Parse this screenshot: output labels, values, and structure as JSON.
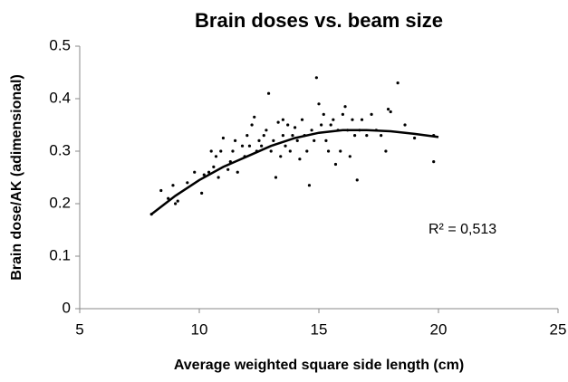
{
  "chart_data": {
    "type": "scatter",
    "title": "Brain doses vs. beam size",
    "x_label": "Average weighted square side length (cm)",
    "y_label": "Brain dose/AK (adimensional)",
    "annotation": "R² = 0,513",
    "x": [
      8.0,
      8.4,
      8.7,
      8.9,
      9.1,
      9.0,
      9.5,
      9.8,
      10.1,
      10.2,
      10.4,
      10.5,
      10.6,
      10.7,
      10.8,
      10.9,
      11.0,
      11.2,
      11.3,
      11.4,
      11.5,
      11.6,
      11.8,
      11.9,
      12.0,
      12.1,
      12.2,
      12.3,
      12.4,
      12.5,
      12.6,
      12.7,
      12.8,
      12.9,
      13.0,
      13.1,
      13.2,
      13.3,
      13.4,
      13.5,
      13.5,
      13.6,
      13.7,
      13.8,
      13.9,
      14.0,
      14.1,
      14.2,
      14.3,
      14.4,
      14.5,
      14.6,
      14.7,
      14.8,
      14.9,
      15.0,
      15.1,
      15.2,
      15.3,
      15.4,
      15.5,
      15.6,
      15.7,
      15.8,
      15.9,
      16.0,
      16.1,
      16.2,
      16.3,
      16.4,
      16.5,
      16.6,
      16.7,
      16.8,
      17.0,
      17.2,
      17.4,
      17.6,
      17.8,
      17.9,
      18.0,
      18.3,
      18.6,
      19.0,
      19.8,
      19.8
    ],
    "values": [
      0.18,
      0.225,
      0.21,
      0.235,
      0.205,
      0.2,
      0.24,
      0.26,
      0.22,
      0.255,
      0.26,
      0.3,
      0.27,
      0.29,
      0.25,
      0.3,
      0.325,
      0.265,
      0.28,
      0.3,
      0.32,
      0.26,
      0.31,
      0.29,
      0.33,
      0.31,
      0.35,
      0.365,
      0.3,
      0.32,
      0.31,
      0.33,
      0.34,
      0.41,
      0.3,
      0.32,
      0.25,
      0.355,
      0.29,
      0.33,
      0.36,
      0.31,
      0.35,
      0.3,
      0.33,
      0.345,
      0.32,
      0.285,
      0.36,
      0.33,
      0.3,
      0.235,
      0.34,
      0.32,
      0.44,
      0.39,
      0.35,
      0.37,
      0.32,
      0.3,
      0.35,
      0.36,
      0.275,
      0.34,
      0.3,
      0.37,
      0.385,
      0.34,
      0.29,
      0.36,
      0.33,
      0.245,
      0.34,
      0.36,
      0.33,
      0.37,
      0.34,
      0.33,
      0.3,
      0.38,
      0.375,
      0.43,
      0.35,
      0.325,
      0.33,
      0.28
    ],
    "color": "#000000",
    "trendline": {
      "x": [
        8,
        9,
        10,
        11,
        12,
        13,
        14,
        15,
        16,
        17,
        18,
        19,
        20
      ],
      "values": [
        0.18,
        0.215,
        0.245,
        0.27,
        0.29,
        0.31,
        0.325,
        0.335,
        0.34,
        0.34,
        0.338,
        0.333,
        0.327
      ],
      "color": "#000000"
    },
    "xlim": [
      5,
      25
    ],
    "xticks": [
      5,
      10,
      15,
      20,
      25
    ],
    "ylim": [
      0,
      0.5
    ],
    "yticks": [
      0,
      0.1,
      0.2,
      0.3,
      0.4,
      0.5
    ]
  }
}
